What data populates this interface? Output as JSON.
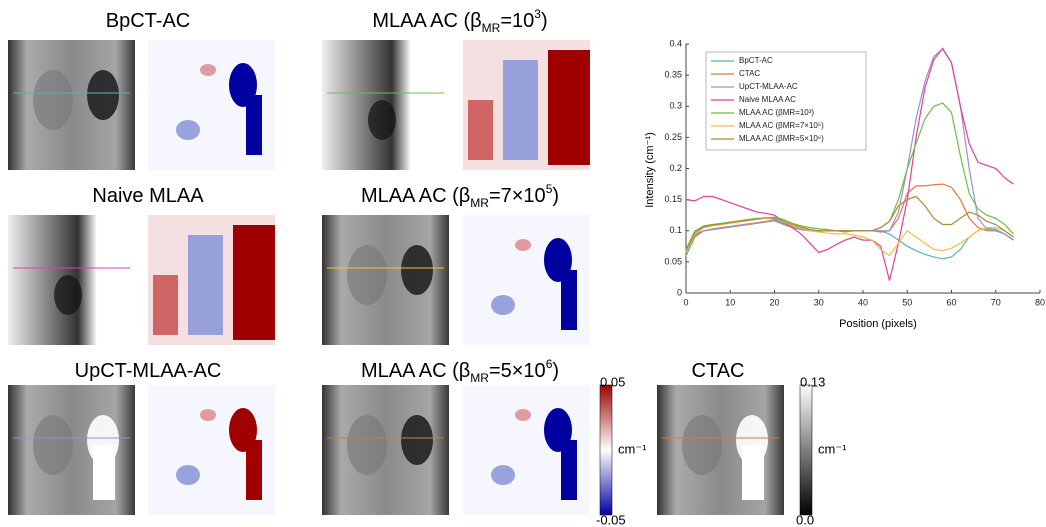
{
  "panels": [
    {
      "title": [
        "BpCT-AC"
      ]
    },
    {
      "title": [
        "MLAA AC (β",
        "MR",
        "=10",
        "3",
        ")"
      ]
    },
    {
      "title": [
        "Naive MLAA"
      ]
    },
    {
      "title": [
        "MLAA AC (β",
        "MR",
        "=7×10",
        "5",
        ")"
      ]
    },
    {
      "title": [
        "UpCT-MLAA-AC"
      ]
    },
    {
      "title": [
        "MLAA AC (β",
        "MR",
        "=5×10",
        "6",
        ")"
      ]
    },
    {
      "title": [
        "CTAC"
      ]
    }
  ],
  "colorbars": [
    {
      "top": "0.05",
      "unit": "cm⁻¹",
      "bottom": "-0.05"
    },
    {
      "top": "0.13",
      "unit": "cm⁻¹",
      "bottom": "0.0"
    }
  ],
  "chart_data": {
    "type": "line",
    "x_label": "Position (pixels)",
    "y_label": "Intensity (cm⁻¹)",
    "xlim": [
      0,
      80
    ],
    "ylim": [
      0,
      0.4
    ],
    "xticks": [
      0,
      10,
      20,
      30,
      40,
      50,
      60,
      70,
      80
    ],
    "yticks": [
      0,
      0.05,
      0.1,
      0.15,
      0.2,
      0.25,
      0.3,
      0.35,
      0.4
    ],
    "legend": "upper-left",
    "x": [
      0,
      2,
      4,
      6,
      8,
      10,
      12,
      14,
      16,
      18,
      20,
      22,
      24,
      26,
      28,
      30,
      32,
      34,
      36,
      38,
      40,
      42,
      44,
      46,
      48,
      50,
      52,
      54,
      56,
      58,
      60,
      62,
      64,
      66,
      68,
      70,
      72,
      74
    ],
    "series": [
      {
        "name": "BpCT-AC",
        "color": "#4fb8b0",
        "values": [
          0.06,
          0.09,
          0.1,
          0.102,
          0.104,
          0.106,
          0.108,
          0.11,
          0.112,
          0.114,
          0.116,
          0.11,
          0.105,
          0.102,
          0.1,
          0.1,
          0.1,
          0.1,
          0.1,
          0.1,
          0.1,
          0.1,
          0.1,
          0.095,
          0.085,
          0.075,
          0.068,
          0.062,
          0.058,
          0.055,
          0.058,
          0.07,
          0.09,
          0.1,
          0.104,
          0.102,
          0.095,
          0.085
        ]
      },
      {
        "name": "CTAC",
        "color": "#e07b39",
        "values": [
          0.065,
          0.092,
          0.1,
          0.102,
          0.104,
          0.106,
          0.108,
          0.11,
          0.112,
          0.114,
          0.118,
          0.112,
          0.105,
          0.102,
          0.1,
          0.1,
          0.1,
          0.1,
          0.1,
          0.1,
          0.1,
          0.1,
          0.098,
          0.1,
          0.12,
          0.16,
          0.172,
          0.172,
          0.174,
          0.175,
          0.17,
          0.15,
          0.12,
          0.105,
          0.1,
          0.1,
          0.095,
          0.085
        ]
      },
      {
        "name": "UpCT-MLAA-AC",
        "color": "#9b8fd0",
        "values": [
          0.07,
          0.095,
          0.1,
          0.103,
          0.105,
          0.107,
          0.109,
          0.111,
          0.113,
          0.115,
          0.118,
          0.113,
          0.106,
          0.103,
          0.1,
          0.1,
          0.1,
          0.1,
          0.1,
          0.1,
          0.1,
          0.1,
          0.1,
          0.1,
          0.13,
          0.2,
          0.28,
          0.34,
          0.38,
          0.392,
          0.37,
          0.3,
          0.2,
          0.12,
          0.102,
          0.1,
          0.095,
          0.085
        ]
      },
      {
        "name": "Naive MLAA AC",
        "color": "#e040a0",
        "values": [
          0.15,
          0.148,
          0.155,
          0.155,
          0.15,
          0.145,
          0.14,
          0.135,
          0.13,
          0.128,
          0.125,
          0.115,
          0.105,
          0.095,
          0.08,
          0.065,
          0.07,
          0.078,
          0.085,
          0.09,
          0.085,
          0.085,
          0.075,
          0.02,
          0.08,
          0.15,
          0.25,
          0.33,
          0.375,
          0.393,
          0.37,
          0.3,
          0.24,
          0.21,
          0.205,
          0.2,
          0.185,
          0.175
        ]
      },
      {
        "name": "MLAA AC (βMR=10³)",
        "color": "#6cbf4a",
        "values": [
          0.07,
          0.1,
          0.108,
          0.11,
          0.112,
          0.114,
          0.116,
          0.118,
          0.12,
          0.12,
          0.122,
          0.118,
          0.112,
          0.108,
          0.105,
          0.103,
          0.102,
          0.1,
          0.098,
          0.1,
          0.1,
          0.1,
          0.105,
          0.115,
          0.15,
          0.2,
          0.24,
          0.28,
          0.3,
          0.305,
          0.29,
          0.22,
          0.16,
          0.135,
          0.125,
          0.12,
          0.11,
          0.095
        ]
      },
      {
        "name": "MLAA AC (βMR=7×10⁵)",
        "color": "#f0c040",
        "values": [
          0.065,
          0.095,
          0.105,
          0.108,
          0.11,
          0.112,
          0.114,
          0.116,
          0.118,
          0.12,
          0.12,
          0.115,
          0.108,
          0.105,
          0.1,
          0.098,
          0.096,
          0.095,
          0.095,
          0.093,
          0.09,
          0.085,
          0.07,
          0.06,
          0.08,
          0.1,
          0.09,
          0.08,
          0.07,
          0.068,
          0.072,
          0.08,
          0.09,
          0.1,
          0.105,
          0.105,
          0.1,
          0.09
        ]
      },
      {
        "name": "MLAA AC (βMR=5×10⁶)",
        "color": "#b08a40",
        "values": [
          0.068,
          0.097,
          0.106,
          0.109,
          0.111,
          0.113,
          0.115,
          0.117,
          0.119,
          0.121,
          0.12,
          0.116,
          0.11,
          0.106,
          0.102,
          0.1,
          0.1,
          0.1,
          0.1,
          0.1,
          0.1,
          0.1,
          0.105,
          0.115,
          0.14,
          0.15,
          0.155,
          0.14,
          0.12,
          0.11,
          0.11,
          0.12,
          0.13,
          0.125,
          0.115,
          0.11,
          0.1,
          0.09
        ]
      }
    ]
  }
}
